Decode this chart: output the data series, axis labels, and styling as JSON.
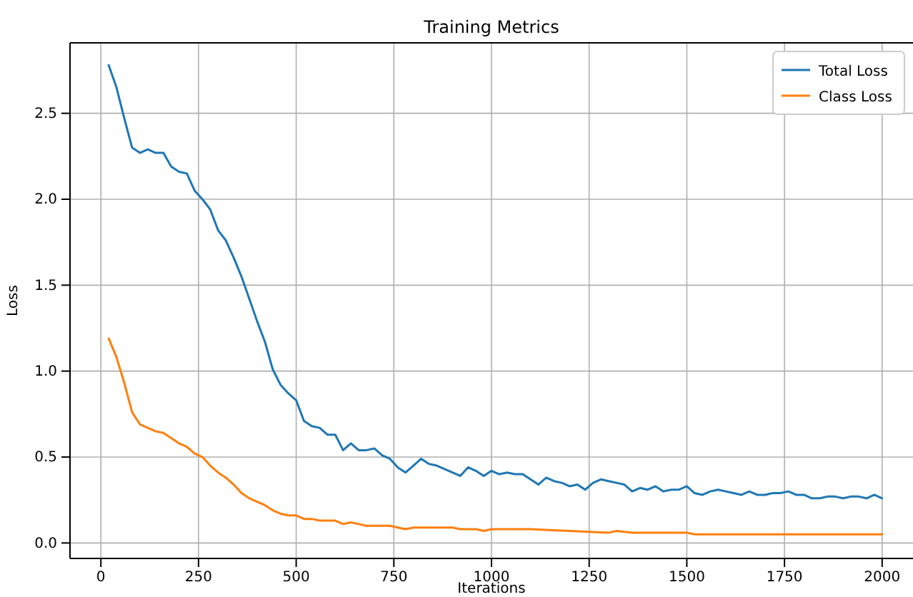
{
  "chart_data": {
    "type": "line",
    "title": "Training Metrics",
    "xlabel": "Iterations",
    "ylabel": "Loss",
    "xlim": [
      -79,
      2079
    ],
    "ylim": [
      -0.09,
      2.91
    ],
    "xticks": [
      0,
      250,
      500,
      750,
      1000,
      1250,
      1500,
      1750,
      2000
    ],
    "yticks": [
      {
        "value": 0,
        "label": "0.0"
      },
      {
        "value": 0.5,
        "label": "0.5"
      },
      {
        "value": 1,
        "label": "1.0"
      },
      {
        "value": 1.5,
        "label": "1.5"
      },
      {
        "value": 2,
        "label": "2.0"
      },
      {
        "value": 2.5,
        "label": "2.5"
      }
    ],
    "grid": true,
    "legend": "top right",
    "series": [
      {
        "name": "Total Loss",
        "color": "#1f77b4",
        "x": [
          20,
          40,
          60,
          80,
          100,
          120,
          140,
          160,
          180,
          200,
          220,
          240,
          260,
          280,
          300,
          320,
          340,
          360,
          380,
          400,
          420,
          440,
          460,
          480,
          500,
          520,
          540,
          560,
          580,
          600,
          620,
          640,
          660,
          680,
          700,
          720,
          740,
          760,
          780,
          800,
          820,
          840,
          860,
          880,
          900,
          920,
          940,
          960,
          980,
          1000,
          1020,
          1040,
          1060,
          1080,
          1100,
          1120,
          1140,
          1160,
          1180,
          1200,
          1220,
          1240,
          1260,
          1280,
          1300,
          1320,
          1340,
          1360,
          1380,
          1400,
          1420,
          1440,
          1460,
          1480,
          1500,
          1520,
          1540,
          1560,
          1580,
          1600,
          1620,
          1640,
          1660,
          1680,
          1700,
          1720,
          1740,
          1760,
          1780,
          1800,
          1820,
          1840,
          1860,
          1880,
          1900,
          1920,
          1940,
          1960,
          1980,
          2000
        ],
        "values": [
          2.78,
          2.65,
          2.47,
          2.3,
          2.27,
          2.29,
          2.27,
          2.27,
          2.19,
          2.16,
          2.15,
          2.05,
          2.0,
          1.94,
          1.82,
          1.76,
          1.66,
          1.55,
          1.42,
          1.29,
          1.17,
          1.01,
          0.92,
          0.87,
          0.83,
          0.71,
          0.68,
          0.67,
          0.63,
          0.63,
          0.54,
          0.58,
          0.54,
          0.54,
          0.55,
          0.51,
          0.49,
          0.44,
          0.41,
          0.45,
          0.49,
          0.46,
          0.45,
          0.43,
          0.41,
          0.39,
          0.44,
          0.42,
          0.39,
          0.42,
          0.4,
          0.41,
          0.4,
          0.4,
          0.37,
          0.34,
          0.38,
          0.36,
          0.35,
          0.33,
          0.34,
          0.31,
          0.35,
          0.37,
          0.36,
          0.35,
          0.34,
          0.3,
          0.32,
          0.31,
          0.33,
          0.3,
          0.31,
          0.31,
          0.33,
          0.29,
          0.28,
          0.3,
          0.31,
          0.3,
          0.29,
          0.28,
          0.3,
          0.28,
          0.28,
          0.29,
          0.29,
          0.3,
          0.28,
          0.28,
          0.26,
          0.26,
          0.27,
          0.27,
          0.26,
          0.27,
          0.27,
          0.26,
          0.28,
          0.26
        ]
      },
      {
        "name": "Class Loss",
        "color": "#ff7f0e",
        "x": [
          20,
          40,
          60,
          80,
          100,
          120,
          140,
          160,
          180,
          200,
          220,
          240,
          260,
          280,
          300,
          320,
          340,
          360,
          380,
          400,
          420,
          440,
          460,
          480,
          500,
          520,
          540,
          560,
          580,
          600,
          620,
          640,
          660,
          680,
          700,
          720,
          740,
          760,
          780,
          800,
          820,
          840,
          900,
          920,
          960,
          980,
          1000,
          1100,
          1200,
          1300,
          1320,
          1360,
          1400,
          1500,
          1520,
          1600,
          1700,
          1800,
          1900,
          1980,
          2000
        ],
        "values": [
          1.19,
          1.08,
          0.93,
          0.76,
          0.69,
          0.67,
          0.65,
          0.64,
          0.61,
          0.58,
          0.56,
          0.52,
          0.5,
          0.45,
          0.41,
          0.38,
          0.34,
          0.29,
          0.26,
          0.24,
          0.22,
          0.19,
          0.17,
          0.16,
          0.16,
          0.14,
          0.14,
          0.13,
          0.13,
          0.13,
          0.11,
          0.12,
          0.11,
          0.1,
          0.1,
          0.1,
          0.1,
          0.09,
          0.08,
          0.09,
          0.09,
          0.09,
          0.09,
          0.08,
          0.08,
          0.07,
          0.08,
          0.08,
          0.07,
          0.06,
          0.07,
          0.06,
          0.06,
          0.06,
          0.05,
          0.05,
          0.05,
          0.05,
          0.05,
          0.05,
          0.05
        ]
      }
    ]
  }
}
